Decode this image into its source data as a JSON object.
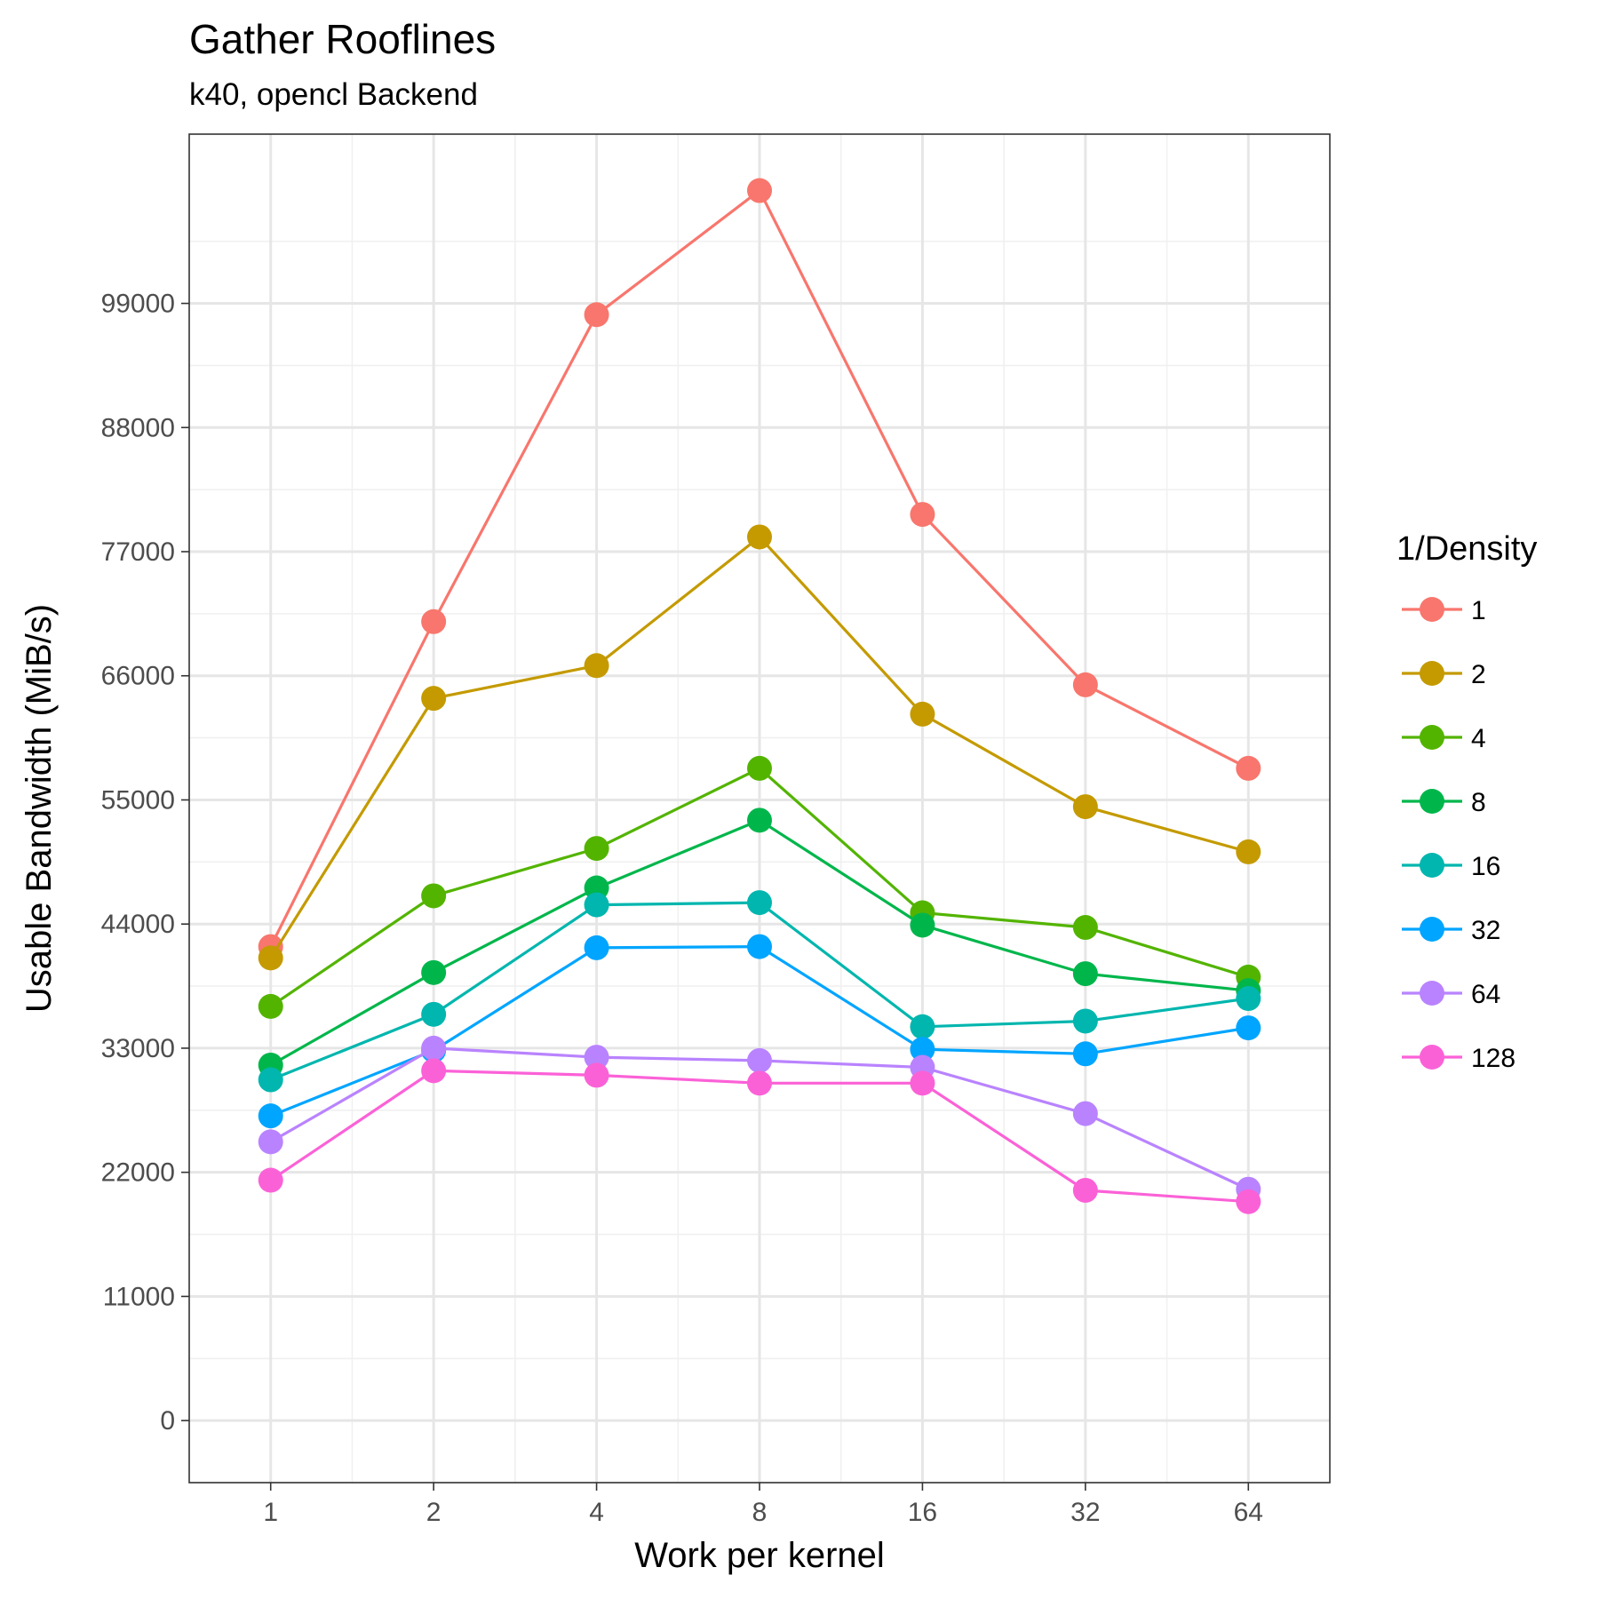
{
  "chart_data": {
    "type": "line",
    "title": "Gather Rooflines",
    "subtitle": "k40, opencl Backend",
    "xlabel": "Work per kernel",
    "ylabel": "Usable Bandwidth (MiB/s)",
    "x": [
      1,
      2,
      4,
      8,
      16,
      32,
      64
    ],
    "x_tick_labels": [
      "1",
      "2",
      "4",
      "8",
      "16",
      "32",
      "64"
    ],
    "x_scale": "log2",
    "y_ticks": [
      0,
      11000,
      22000,
      33000,
      44000,
      55000,
      66000,
      77000,
      88000,
      99000
    ],
    "y_tick_labels": [
      "0",
      "11000",
      "22000",
      "33000",
      "44000",
      "55000",
      "66000",
      "77000",
      "88000",
      "99000"
    ],
    "ylim": [
      -5500,
      114000
    ],
    "grid": true,
    "legend": {
      "title": "1/Density",
      "position": "right"
    },
    "series": [
      {
        "name": "1",
        "color": "#F8766D",
        "values": [
          42000,
          70800,
          98000,
          109000,
          80300,
          65200,
          57800
        ]
      },
      {
        "name": "2",
        "color": "#C49A00",
        "values": [
          41000,
          64000,
          66900,
          78300,
          62600,
          54400,
          50400
        ]
      },
      {
        "name": "4",
        "color": "#53B400",
        "values": [
          36700,
          46500,
          50700,
          57800,
          45000,
          43700,
          39300
        ]
      },
      {
        "name": "8",
        "color": "#00B64B",
        "values": [
          31500,
          39700,
          47200,
          53200,
          43900,
          39600,
          38100
        ]
      },
      {
        "name": "16",
        "color": "#00B6AE",
        "values": [
          30200,
          36000,
          45700,
          45900,
          34900,
          35400,
          37400
        ]
      },
      {
        "name": "32",
        "color": "#00A5FF",
        "values": [
          27000,
          32800,
          41900,
          42000,
          32900,
          32500,
          34800
        ]
      },
      {
        "name": "64",
        "color": "#B983FF",
        "values": [
          24700,
          33000,
          32200,
          31900,
          31300,
          27200,
          20500
        ]
      },
      {
        "name": "128",
        "color": "#FB61D7",
        "values": [
          21300,
          31000,
          30600,
          29900,
          29900,
          20400,
          19400
        ]
      }
    ]
  }
}
